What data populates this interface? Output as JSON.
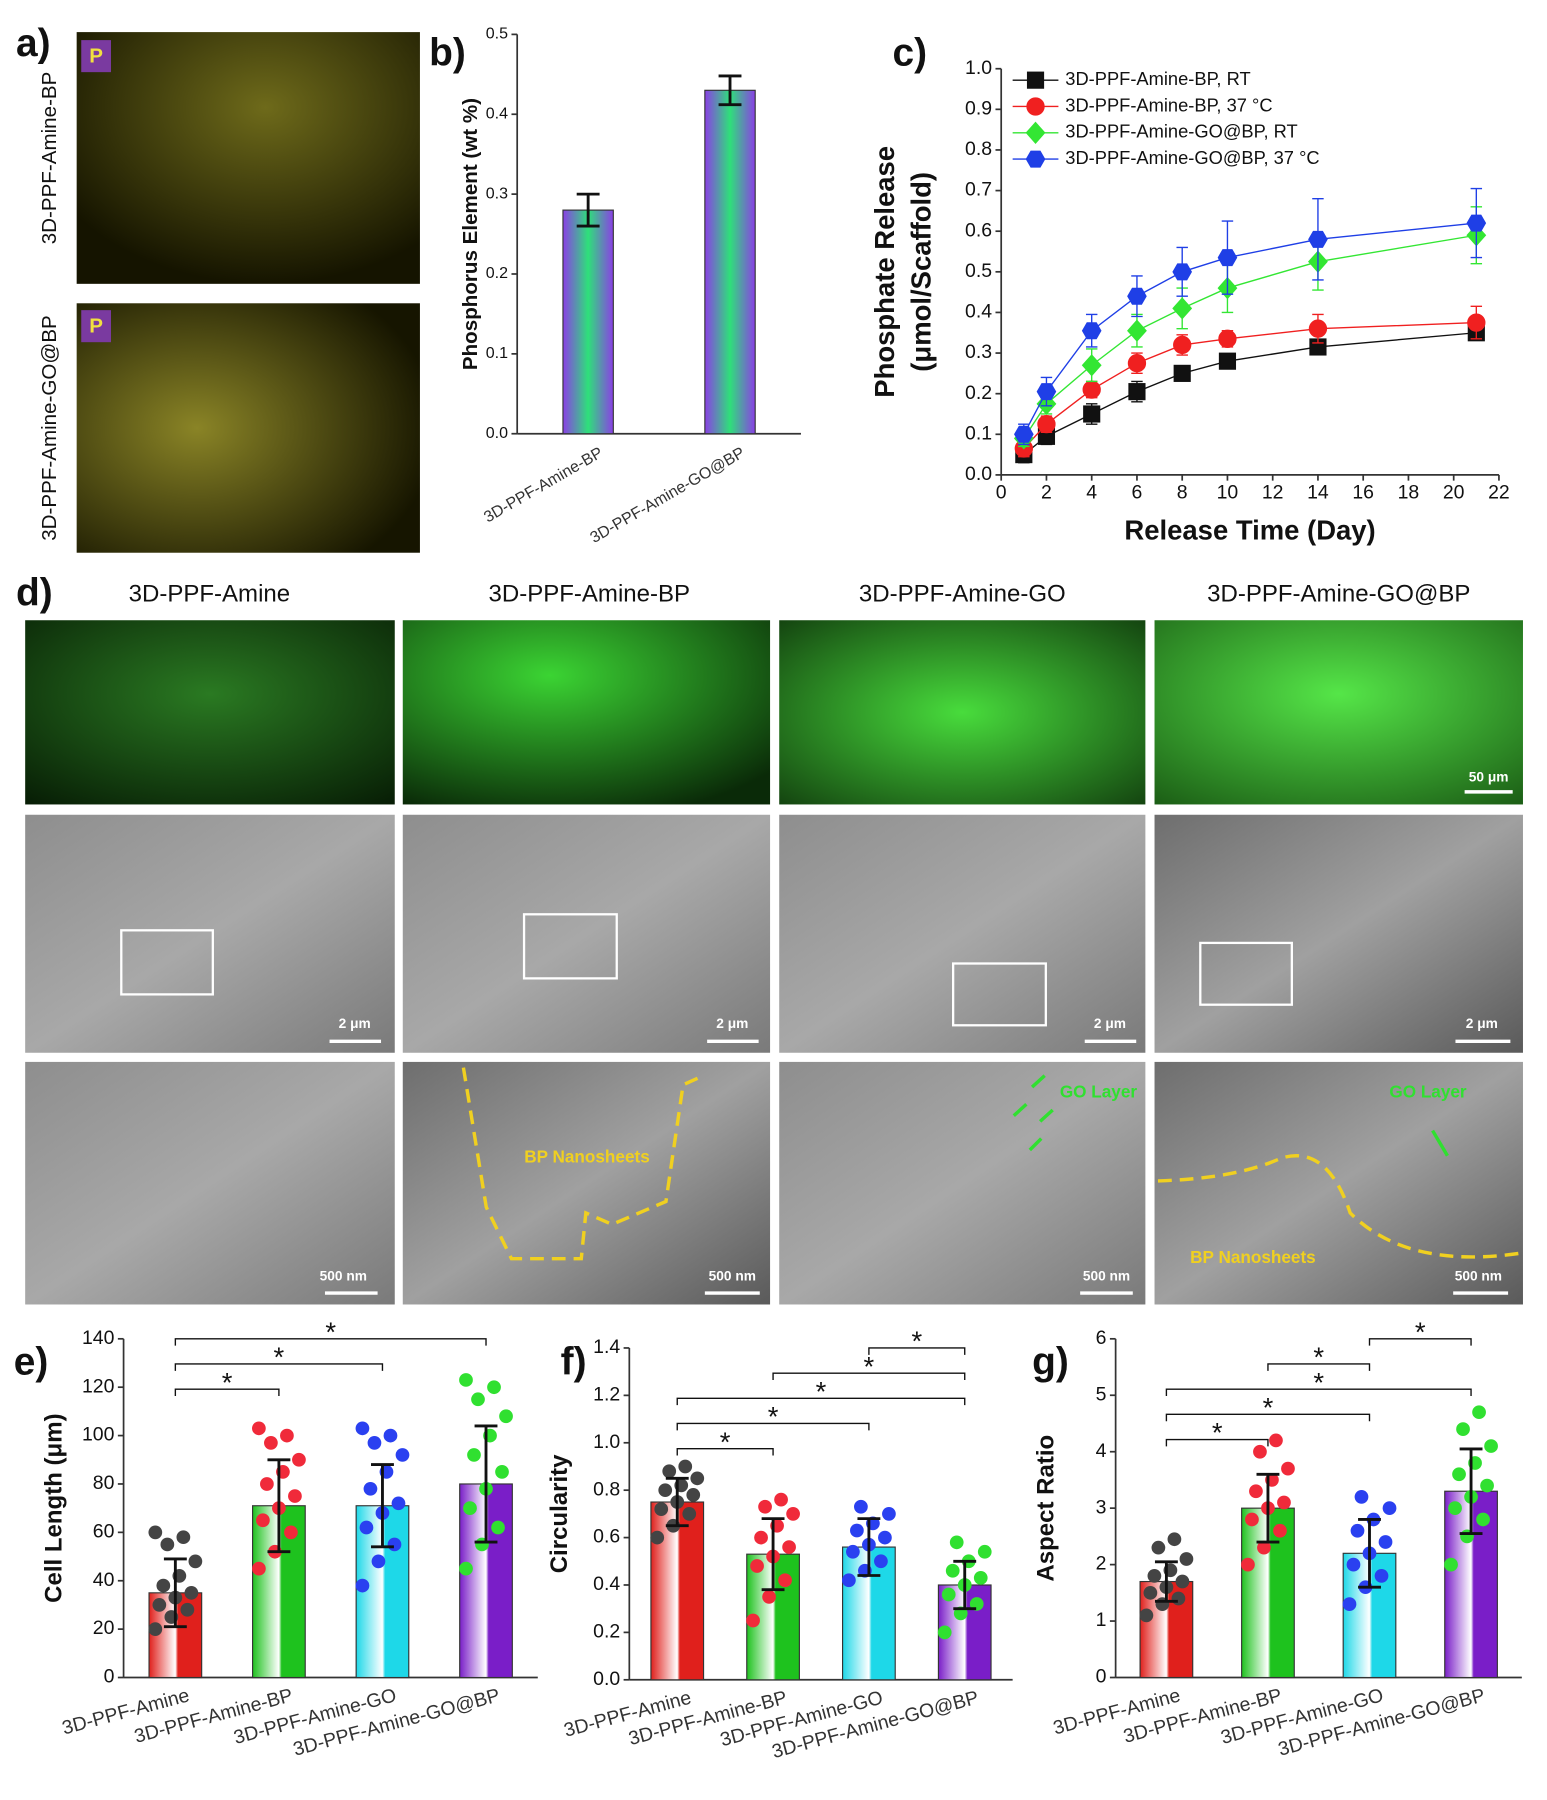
{
  "chart_data": [
    {
      "type": "bar",
      "panel": "b)",
      "ylabel": "Phosphorus Element (wt %)",
      "categories": [
        "3D-PPF-Amine-BP",
        "3D-PPF-Amine-GO@BP"
      ],
      "values": [
        0.28,
        0.43
      ],
      "errors": [
        0.02,
        0.018
      ],
      "colors": [
        "#8a3fe6",
        "#2ee07a"
      ],
      "ylim": [
        0,
        0.5
      ],
      "yticks": [
        {
          "value": 0,
          "label": "0.0"
        },
        0.1,
        0.2,
        0.3,
        0.4,
        0.5
      ]
    },
    {
      "type": "line",
      "panel": "c)",
      "xlabel": "Release Time (Day)",
      "ylabel": [
        "Phosphate Release",
        "(μmol/Scaffold)"
      ],
      "x": [
        1,
        2,
        4,
        6,
        8,
        10,
        14,
        21
      ],
      "series": [
        {
          "name": "3D-PPF-Amine-BP, RT",
          "color": "#111111",
          "marker": "square",
          "values": [
            0.05,
            0.095,
            0.15,
            0.205,
            0.25,
            0.28,
            0.315,
            0.35
          ],
          "errors": [
            0.02,
            0.02,
            0.025,
            0.025,
            0.01,
            0.01,
            0.01,
            0.01
          ]
        },
        {
          "name": "3D-PPF-Amine-BP, 37 °C",
          "color": "#f02020",
          "marker": "circle",
          "values": [
            0.065,
            0.125,
            0.21,
            0.275,
            0.32,
            0.335,
            0.36,
            0.375
          ],
          "errors": [
            0.02,
            0.02,
            0.02,
            0.025,
            0.025,
            0.02,
            0.035,
            0.04
          ]
        },
        {
          "name": "3D-PPF-Amine-GO@BP, RT",
          "color": "#33e633",
          "marker": "diamond",
          "values": [
            0.09,
            0.175,
            0.27,
            0.355,
            0.41,
            0.46,
            0.525,
            0.59
          ],
          "errors": [
            0.02,
            0.025,
            0.04,
            0.04,
            0.05,
            0.06,
            0.07,
            0.07
          ]
        },
        {
          "name": "3D-PPF-Amine-GO@BP, 37 °C",
          "color": "#1f3fe6",
          "marker": "hexagon",
          "values": [
            0.1,
            0.205,
            0.355,
            0.44,
            0.5,
            0.535,
            0.58,
            0.62
          ],
          "errors": [
            0.025,
            0.035,
            0.04,
            0.05,
            0.06,
            0.09,
            0.1,
            0.085
          ]
        }
      ],
      "xlim": [
        0,
        22
      ],
      "xticks": [
        0,
        2,
        4,
        6,
        8,
        10,
        12,
        14,
        16,
        18,
        20,
        22
      ],
      "ylim": [
        0,
        1
      ],
      "yticks": [
        {
          "value": 0,
          "label": "0.0"
        },
        0.1,
        0.2,
        0.3,
        0.4,
        0.5,
        0.6,
        0.7,
        0.8,
        0.9,
        {
          "value": 1,
          "label": "1.0"
        }
      ],
      "legend": "upper left"
    },
    {
      "type": "bar",
      "panel": "e)",
      "ylabel": "Cell Length (μm)",
      "categories": [
        "3D-PPF-Amine",
        "3D-PPF-Amine-BP",
        "3D-PPF-Amine-GO",
        "3D-PPF-Amine-GO@BP"
      ],
      "values": [
        35,
        71,
        71,
        80
      ],
      "errors": [
        14,
        19,
        17,
        24
      ],
      "colors": [
        "#e0201c",
        "#1ec21e",
        "#1ed8e8",
        "#7a1ec8"
      ],
      "point_colors": [
        "#444444",
        "#f02a3a",
        "#2a40f0",
        "#30e030"
      ],
      "points": [
        [
          20,
          25,
          28,
          30,
          33,
          35,
          38,
          42,
          48,
          55,
          58,
          60
        ],
        [
          45,
          52,
          60,
          65,
          70,
          75,
          80,
          85,
          90,
          97,
          100,
          103
        ],
        [
          38,
          48,
          55,
          62,
          68,
          72,
          78,
          85,
          92,
          97,
          100,
          103
        ],
        [
          45,
          55,
          62,
          70,
          78,
          85,
          92,
          100,
          108,
          115,
          120,
          123
        ]
      ],
      "significance": [
        {
          "pair": [
            0,
            1
          ],
          "label": "*"
        },
        {
          "pair": [
            0,
            2
          ],
          "label": "*"
        },
        {
          "pair": [
            0,
            3
          ],
          "label": "*"
        }
      ],
      "ylim": [
        0,
        140
      ],
      "yticks": [
        0,
        20,
        40,
        60,
        80,
        100,
        120,
        140
      ]
    },
    {
      "type": "bar",
      "panel": "f)",
      "ylabel": "Circularity",
      "categories": [
        "3D-PPF-Amine",
        "3D-PPF-Amine-BP",
        "3D-PPF-Amine-GO",
        "3D-PPF-Amine-GO@BP"
      ],
      "values": [
        0.75,
        0.53,
        0.56,
        0.4
      ],
      "errors": [
        0.1,
        0.15,
        0.12,
        0.1
      ],
      "colors": [
        "#e0201c",
        "#1ec21e",
        "#1ed8e8",
        "#7a1ec8"
      ],
      "point_colors": [
        "#444444",
        "#f02a3a",
        "#2a40f0",
        "#30e030"
      ],
      "points": [
        [
          0.6,
          0.65,
          0.7,
          0.72,
          0.75,
          0.78,
          0.8,
          0.82,
          0.85,
          0.88,
          0.9
        ],
        [
          0.25,
          0.35,
          0.42,
          0.48,
          0.52,
          0.56,
          0.6,
          0.65,
          0.7,
          0.73,
          0.76
        ],
        [
          0.42,
          0.46,
          0.5,
          0.54,
          0.57,
          0.6,
          0.63,
          0.66,
          0.7,
          0.73
        ],
        [
          0.2,
          0.28,
          0.32,
          0.36,
          0.4,
          0.43,
          0.46,
          0.5,
          0.54,
          0.58
        ]
      ],
      "significance": [
        {
          "pair": [
            0,
            1
          ],
          "label": "*"
        },
        {
          "pair": [
            0,
            2
          ],
          "label": "*"
        },
        {
          "pair": [
            0,
            3
          ],
          "label": "*"
        },
        {
          "pair": [
            1,
            3
          ],
          "label": "*"
        },
        {
          "pair": [
            2,
            3
          ],
          "label": "*"
        }
      ],
      "ylim": [
        0,
        1.4
      ],
      "yticks": [
        {
          "value": 0,
          "label": "0.0"
        },
        0.2,
        0.4,
        0.6,
        0.8,
        {
          "value": 1,
          "label": "1.0"
        },
        1.2,
        1.4
      ]
    },
    {
      "type": "bar",
      "panel": "g)",
      "ylabel": "Aspect Ratio",
      "categories": [
        "3D-PPF-Amine",
        "3D-PPF-Amine-BP",
        "3D-PPF-Amine-GO",
        "3D-PPF-Amine-GO@BP"
      ],
      "values": [
        1.7,
        3.0,
        2.2,
        3.3
      ],
      "errors": [
        0.35,
        0.6,
        0.6,
        0.75
      ],
      "colors": [
        "#e0201c",
        "#1ec21e",
        "#1ed8e8",
        "#7a1ec8"
      ],
      "point_colors": [
        "#444444",
        "#f02a3a",
        "#2a40f0",
        "#30e030"
      ],
      "points": [
        [
          1.1,
          1.3,
          1.4,
          1.5,
          1.6,
          1.7,
          1.8,
          1.9,
          2.1,
          2.3,
          2.45
        ],
        [
          2.0,
          2.3,
          2.6,
          2.8,
          3.0,
          3.1,
          3.3,
          3.5,
          3.7,
          4.0,
          4.2
        ],
        [
          1.3,
          1.6,
          1.8,
          2.0,
          2.2,
          2.4,
          2.6,
          2.8,
          3.0,
          3.2
        ],
        [
          2.0,
          2.5,
          2.8,
          3.0,
          3.2,
          3.4,
          3.6,
          3.8,
          4.1,
          4.4,
          4.7
        ]
      ],
      "significance": [
        {
          "pair": [
            0,
            1
          ],
          "label": "*"
        },
        {
          "pair": [
            0,
            2
          ],
          "label": "*"
        },
        {
          "pair": [
            0,
            3
          ],
          "label": "*"
        },
        {
          "pair": [
            1,
            2
          ],
          "label": "*"
        },
        {
          "pair": [
            2,
            3
          ],
          "label": "*"
        }
      ],
      "ylim": [
        0,
        6
      ],
      "yticks": [
        0,
        1,
        2,
        3,
        4,
        5,
        6
      ]
    }
  ],
  "images": {
    "panel_a": {
      "label": "a)",
      "badge": "P",
      "rows": [
        "3D-PPF-Amine-BP",
        "3D-PPF-Amine-GO@BP"
      ]
    },
    "panel_d": {
      "label": "d)",
      "columns": [
        "3D-PPF-Amine",
        "3D-PPF-Amine-BP",
        "3D-PPF-Amine-GO",
        "3D-PPF-Amine-GO@BP"
      ],
      "fluorescence_scale": "50 μm",
      "sem_scale": "2 μm",
      "zoom_scale": "500 nm",
      "annotations": [
        "BP Nanosheets",
        "GO Layer"
      ]
    }
  }
}
